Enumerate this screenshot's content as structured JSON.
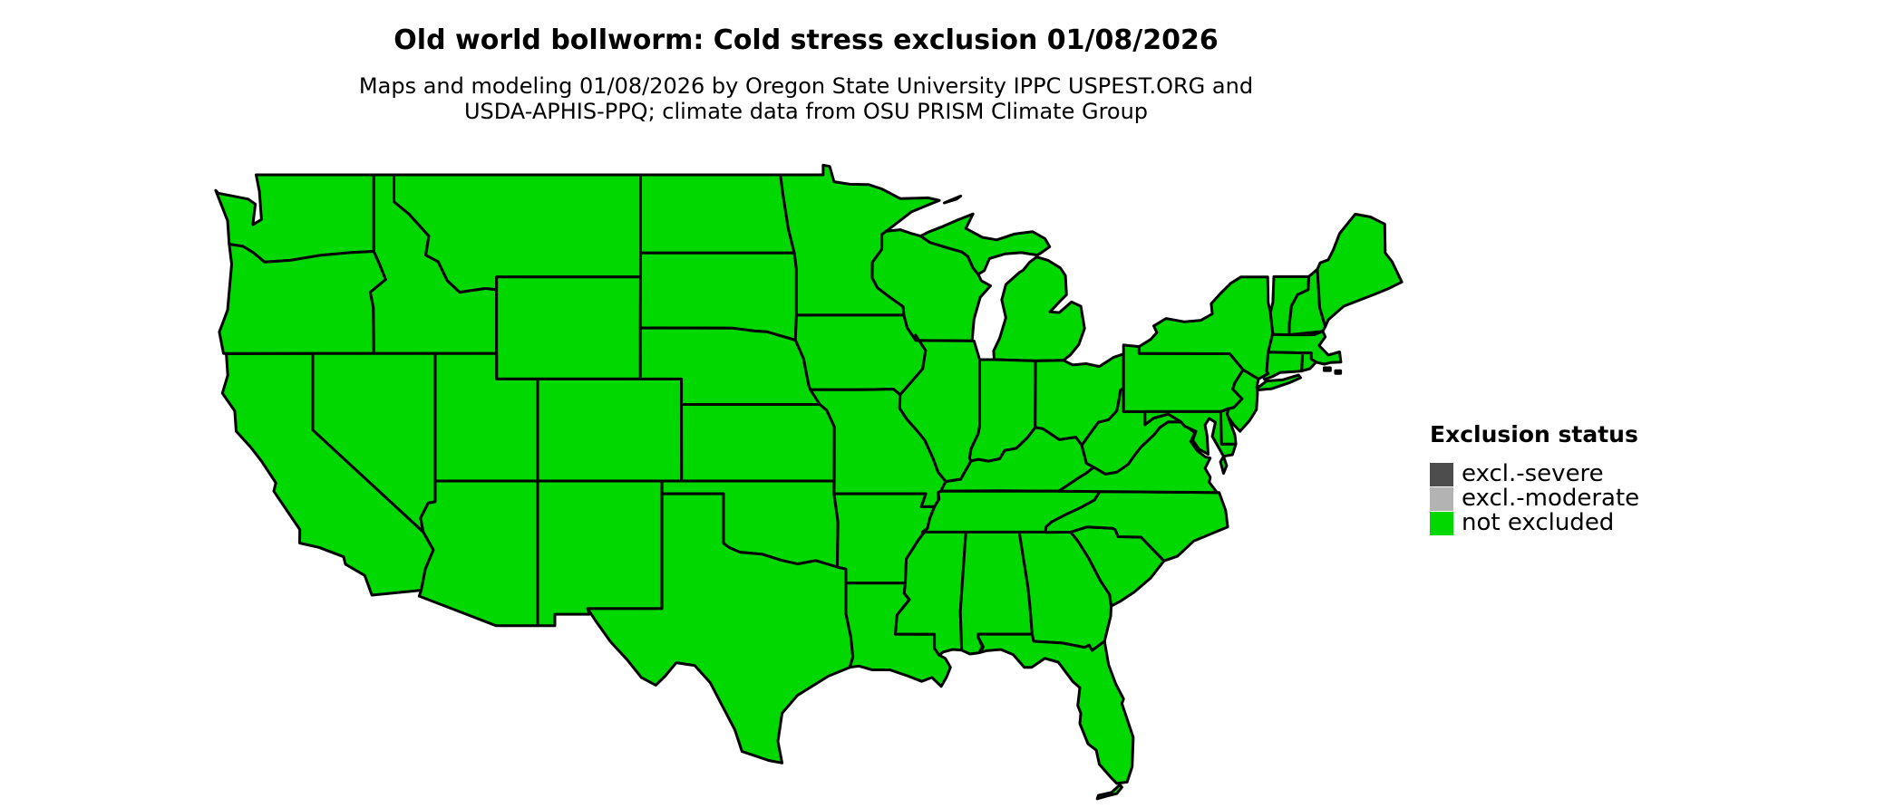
{
  "header": {
    "title": "Old world bollworm: Cold stress exclusion 01/08/2026",
    "subtitle_line1": "Maps and modeling 01/08/2026 by Oregon State University IPPC USPEST.ORG and",
    "subtitle_line2": "USDA-APHIS-PPQ; climate data from OSU PRISM Climate Group"
  },
  "legend": {
    "title": "Exclusion status",
    "items": [
      {
        "label": "excl.-severe",
        "color": "#4d4d4d"
      },
      {
        "label": "excl.-moderate",
        "color": "#b3b3b3"
      },
      {
        "label": "not excluded",
        "color": "#00d800"
      }
    ]
  },
  "map": {
    "background": "#ffffff",
    "border_color": "#000000",
    "region": "contiguous United States",
    "date_shown": "01/08/2026",
    "states": [
      {
        "id": "WA",
        "status": "not excluded"
      },
      {
        "id": "OR",
        "status": "not excluded"
      },
      {
        "id": "CA",
        "status": "not excluded"
      },
      {
        "id": "ID",
        "status": "not excluded"
      },
      {
        "id": "NV",
        "status": "not excluded"
      },
      {
        "id": "MT",
        "status": "not excluded"
      },
      {
        "id": "WY",
        "status": "not excluded"
      },
      {
        "id": "UT",
        "status": "not excluded"
      },
      {
        "id": "CO",
        "status": "not excluded"
      },
      {
        "id": "AZ",
        "status": "not excluded"
      },
      {
        "id": "NM",
        "status": "not excluded"
      },
      {
        "id": "ND",
        "status": "not excluded"
      },
      {
        "id": "SD",
        "status": "not excluded"
      },
      {
        "id": "NE",
        "status": "not excluded"
      },
      {
        "id": "KS",
        "status": "not excluded"
      },
      {
        "id": "OK",
        "status": "not excluded"
      },
      {
        "id": "TX",
        "status": "not excluded"
      },
      {
        "id": "MN",
        "status": "not excluded"
      },
      {
        "id": "IA",
        "status": "not excluded"
      },
      {
        "id": "MO",
        "status": "not excluded"
      },
      {
        "id": "AR",
        "status": "not excluded"
      },
      {
        "id": "LA",
        "status": "not excluded"
      },
      {
        "id": "WI",
        "status": "not excluded"
      },
      {
        "id": "MI",
        "status": "not excluded"
      },
      {
        "id": "IL",
        "status": "not excluded"
      },
      {
        "id": "IN",
        "status": "not excluded"
      },
      {
        "id": "OH",
        "status": "not excluded"
      },
      {
        "id": "KY",
        "status": "not excluded"
      },
      {
        "id": "TN",
        "status": "not excluded"
      },
      {
        "id": "MS",
        "status": "not excluded"
      },
      {
        "id": "AL",
        "status": "not excluded"
      },
      {
        "id": "GA",
        "status": "not excluded"
      },
      {
        "id": "SC",
        "status": "not excluded"
      },
      {
        "id": "NC",
        "status": "not excluded"
      },
      {
        "id": "VA",
        "status": "not excluded"
      },
      {
        "id": "WV",
        "status": "not excluded"
      },
      {
        "id": "PA",
        "status": "not excluded"
      },
      {
        "id": "NJ",
        "status": "not excluded"
      },
      {
        "id": "NY",
        "status": "not excluded"
      },
      {
        "id": "VT",
        "status": "not excluded"
      },
      {
        "id": "NH",
        "status": "not excluded"
      },
      {
        "id": "ME",
        "status": "not excluded"
      },
      {
        "id": "MA",
        "status": "not excluded"
      },
      {
        "id": "RI",
        "status": "not excluded"
      },
      {
        "id": "CT",
        "status": "not excluded"
      },
      {
        "id": "MD",
        "status": "not excluded"
      },
      {
        "id": "DE",
        "status": "not excluded"
      },
      {
        "id": "FL",
        "status": "not excluded"
      }
    ]
  }
}
